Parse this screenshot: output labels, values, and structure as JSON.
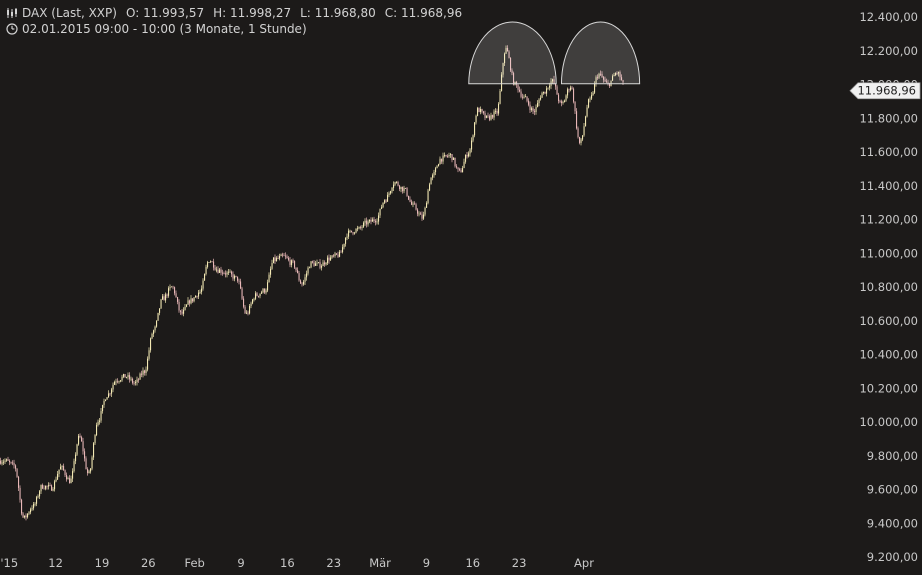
{
  "header": {
    "instrument": "DAX (Last, XXP)",
    "open_label": "O:",
    "open": "11.993,57",
    "high_label": "H:",
    "high": "11.998,27",
    "low_label": "L:",
    "low": "11.968,80",
    "close_label": "C:",
    "close": "11.968,96",
    "period": "02.01.2015 09:00 - 10:00 (3 Monate, 1 Stunde)",
    "icons": [
      "candlestick-icon",
      "clock-icon"
    ]
  },
  "colors": {
    "background": "#1c1a19",
    "up_candle": "#f3e9b4",
    "down_candle": "#e8b7b7",
    "axis_text": "#c8c8c8",
    "price_tag_bg": "#f0f0f0"
  },
  "chart_data": {
    "type": "candlestick",
    "interval": "1 Stunde",
    "y_ticks": [
      "12.400,00",
      "12.200,00",
      "12.000,00",
      "11.800,00",
      "11.600,00",
      "11.400,00",
      "11.200,00",
      "11.000,00",
      "10.800,00",
      "10.600,00",
      "10.400,00",
      "10.200,00",
      "10.000,00",
      "9.800,00",
      "9.600,00",
      "9.400,00",
      "9.200,00"
    ],
    "y_tick_values": [
      12400,
      12200,
      12000,
      11800,
      11600,
      11400,
      11200,
      11000,
      10800,
      10600,
      10400,
      10200,
      10000,
      9800,
      9600,
      9400,
      9200
    ],
    "ylim": [
      9200,
      12400
    ],
    "x_ticks": [
      "'15",
      "12",
      "19",
      "26",
      "Feb",
      "9",
      "16",
      "23",
      "Mär",
      "9",
      "16",
      "23",
      "Apr"
    ],
    "x_tick_dates": [
      "2015-01-05",
      "2015-01-12",
      "2015-01-19",
      "2015-01-26",
      "2015-02-02",
      "2015-02-09",
      "2015-02-16",
      "2015-02-23",
      "2015-03-02",
      "2015-03-09",
      "2015-03-16",
      "2015-03-23",
      "2015-04-01"
    ],
    "last_price_label": "11.968,96",
    "last_price": 11968.96,
    "series_path": [
      {
        "date": "2015-01-02",
        "close": 9770
      },
      {
        "date": "2015-01-05",
        "close": 9740
      },
      {
        "date": "2015-01-06",
        "close": 9430
      },
      {
        "date": "2015-01-07",
        "close": 9500
      },
      {
        "date": "2015-01-08",
        "close": 9620
      },
      {
        "date": "2015-01-09",
        "close": 9610
      },
      {
        "date": "2015-01-12",
        "close": 9730
      },
      {
        "date": "2015-01-13",
        "close": 9650
      },
      {
        "date": "2015-01-14",
        "close": 9910
      },
      {
        "date": "2015-01-15",
        "close": 9690
      },
      {
        "date": "2015-01-16",
        "close": 10010
      },
      {
        "date": "2015-01-19",
        "close": 10160
      },
      {
        "date": "2015-01-20",
        "close": 10250
      },
      {
        "date": "2015-01-21",
        "close": 10270
      },
      {
        "date": "2015-01-22",
        "close": 10230
      },
      {
        "date": "2015-01-23",
        "close": 10300
      },
      {
        "date": "2015-01-26",
        "close": 10540
      },
      {
        "date": "2015-01-27",
        "close": 10730
      },
      {
        "date": "2015-01-28",
        "close": 10800
      },
      {
        "date": "2015-01-29",
        "close": 10640
      },
      {
        "date": "2015-01-30",
        "close": 10720
      },
      {
        "date": "2015-02-02",
        "close": 10770
      },
      {
        "date": "2015-02-03",
        "close": 10960
      },
      {
        "date": "2015-02-04",
        "close": 10900
      },
      {
        "date": "2015-02-05",
        "close": 10880
      },
      {
        "date": "2015-02-06",
        "close": 10850
      },
      {
        "date": "2015-02-09",
        "close": 10640
      },
      {
        "date": "2015-02-10",
        "close": 10750
      },
      {
        "date": "2015-02-11",
        "close": 10780
      },
      {
        "date": "2015-02-12",
        "close": 10960
      },
      {
        "date": "2015-02-13",
        "close": 10980
      },
      {
        "date": "2015-02-16",
        "close": 10940
      },
      {
        "date": "2015-02-17",
        "close": 10820
      },
      {
        "date": "2015-02-18",
        "close": 10940
      },
      {
        "date": "2015-02-19",
        "close": 10930
      },
      {
        "date": "2015-02-20",
        "close": 10970
      },
      {
        "date": "2015-02-23",
        "close": 10990
      },
      {
        "date": "2015-02-24",
        "close": 11120
      },
      {
        "date": "2015-02-25",
        "close": 11140
      },
      {
        "date": "2015-02-26",
        "close": 11180
      },
      {
        "date": "2015-02-27",
        "close": 11200
      },
      {
        "date": "2015-03-02",
        "close": 11320
      },
      {
        "date": "2015-03-03",
        "close": 11420
      },
      {
        "date": "2015-03-04",
        "close": 11380
      },
      {
        "date": "2015-03-05",
        "close": 11280
      },
      {
        "date": "2015-03-06",
        "close": 11210
      },
      {
        "date": "2015-03-09",
        "close": 11450
      },
      {
        "date": "2015-03-10",
        "close": 11560
      },
      {
        "date": "2015-03-11",
        "close": 11580
      },
      {
        "date": "2015-03-12",
        "close": 11480
      },
      {
        "date": "2015-03-13",
        "close": 11600
      },
      {
        "date": "2015-03-16",
        "close": 11850
      },
      {
        "date": "2015-03-17",
        "close": 11800
      },
      {
        "date": "2015-03-18",
        "close": 11830
      },
      {
        "date": "2015-03-19",
        "close": 12210
      },
      {
        "date": "2015-03-20",
        "close": 12000
      },
      {
        "date": "2015-03-23",
        "close": 11920
      },
      {
        "date": "2015-03-24",
        "close": 11840
      },
      {
        "date": "2015-03-25",
        "close": 11950
      },
      {
        "date": "2015-03-26",
        "close": 12020
      },
      {
        "date": "2015-03-27",
        "close": 11880
      },
      {
        "date": "2015-03-30",
        "close": 11990
      },
      {
        "date": "2015-03-31",
        "close": 11650
      },
      {
        "date": "2015-04-01",
        "close": 11900
      },
      {
        "date": "2015-04-02",
        "close": 12060
      },
      {
        "date": "2015-04-06",
        "close": 12000
      },
      {
        "date": "2015-04-07",
        "close": 12070
      },
      {
        "date": "2015-04-08",
        "close": 11969
      }
    ],
    "annotations": [
      {
        "type": "half-circle",
        "from": "2015-03-16",
        "to": "2015-03-27",
        "top_price": 12370
      },
      {
        "type": "half-circle",
        "from": "2015-03-30",
        "to": "2015-04-10",
        "top_price": 12370
      }
    ]
  }
}
